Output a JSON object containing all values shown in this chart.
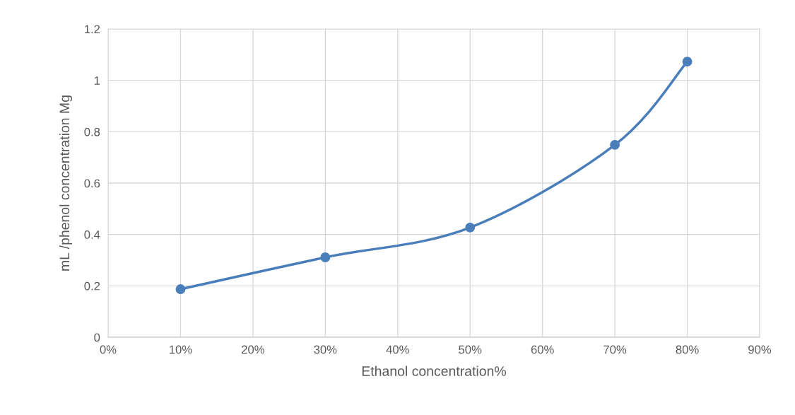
{
  "chart_data": {
    "type": "line",
    "xlabel": "Ethanol concentration%",
    "ylabel": "mL /phenol concentration Mg",
    "x": [
      10,
      30,
      50,
      70,
      80
    ],
    "series": [
      {
        "color": "#4a7ebb",
        "values": [
          0.187,
          0.311,
          0.427,
          0.749,
          1.073
        ]
      }
    ],
    "xlim": [
      0,
      90
    ],
    "xticks": [
      {
        "value": 0,
        "label": "0%"
      },
      {
        "value": 10,
        "label": "10%"
      },
      {
        "value": 20,
        "label": "20%"
      },
      {
        "value": 30,
        "label": "30%"
      },
      {
        "value": 40,
        "label": "40%"
      },
      {
        "value": 50,
        "label": "50%"
      },
      {
        "value": 60,
        "label": "60%"
      },
      {
        "value": 70,
        "label": "70%"
      },
      {
        "value": 80,
        "label": "80%"
      },
      {
        "value": 90,
        "label": "90%"
      }
    ],
    "ylim": [
      0,
      1.2
    ],
    "yticks": [
      0,
      {
        "value": 0.2,
        "label": "0.2"
      },
      {
        "value": 0.4,
        "label": "0.4"
      },
      {
        "value": 0.6,
        "label": "0.6"
      },
      {
        "value": 0.8,
        "label": "0.8"
      },
      1,
      {
        "value": 1.2,
        "label": "1.2"
      }
    ],
    "grid": true,
    "marker": "circle",
    "line_style": "solid"
  }
}
